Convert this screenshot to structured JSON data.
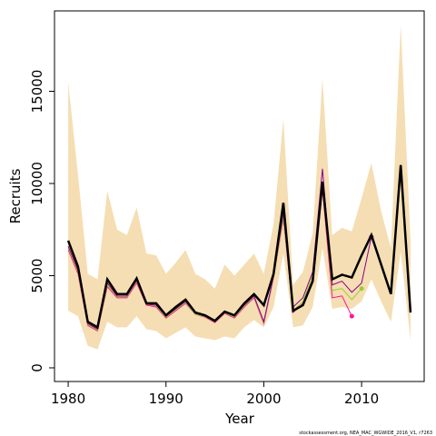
{
  "chart_data": {
    "type": "line",
    "xlabel": "Year",
    "ylabel": "Recruits",
    "note": "stockassessment.org, NEA_MAC_WGWIDE_2016_V1, r7263",
    "x": [
      1980,
      1981,
      1982,
      1983,
      1984,
      1985,
      1986,
      1987,
      1988,
      1989,
      1990,
      1991,
      1992,
      1993,
      1994,
      1995,
      1996,
      1997,
      1998,
      1999,
      2000,
      2001,
      2002,
      2003,
      2004,
      2005,
      2006,
      2007,
      2008,
      2009,
      2010,
      2011,
      2012,
      2013,
      2014,
      2015
    ],
    "band": {
      "color": "#f5deb3",
      "upper": [
        15500,
        10500,
        5100,
        4800,
        9600,
        7500,
        7200,
        8700,
        6200,
        6100,
        5100,
        5700,
        6400,
        5100,
        4800,
        4300,
        5600,
        5000,
        5600,
        6200,
        5100,
        7800,
        13500,
        4500,
        5200,
        7300,
        15700,
        7200,
        7600,
        7400,
        9200,
        11100,
        8500,
        6500,
        18600,
        7000
      ],
      "lower": [
        3100,
        2800,
        1200,
        1000,
        2500,
        2200,
        2200,
        2800,
        2100,
        2000,
        1600,
        1900,
        2200,
        1700,
        1600,
        1500,
        1700,
        1600,
        2200,
        2600,
        2200,
        3300,
        6200,
        2200,
        2300,
        3300,
        6500,
        3200,
        3300,
        3200,
        3600,
        4800,
        3600,
        2500,
        6300,
        1500
      ]
    },
    "series": [
      {
        "color": "#ff1493",
        "values": [
          6400,
          5100,
          2300,
          2000,
          4400,
          3800,
          3800,
          4600,
          3400,
          3300,
          2700,
          3100,
          3500,
          2900,
          2750,
          2450,
          2950,
          2700,
          3300,
          3800,
          2400,
          4900,
          8100,
          3000,
          3500,
          4800,
          9700,
          3800,
          3900,
          2800,
          null,
          null,
          null,
          null,
          null,
          null
        ]
      },
      {
        "color": "#9acd32",
        "values": [
          6500,
          5200,
          2350,
          2050,
          4500,
          3850,
          3850,
          4700,
          3450,
          3350,
          2750,
          3150,
          3550,
          2900,
          2780,
          2480,
          2980,
          2750,
          3350,
          3850,
          2450,
          4950,
          8200,
          3100,
          3600,
          5000,
          10000,
          4200,
          4300,
          3700,
          4300,
          null,
          null,
          null,
          null,
          null
        ]
      },
      {
        "color": "#8b008b",
        "values": [
          6600,
          5300,
          2400,
          2100,
          4600,
          3900,
          3900,
          4750,
          3450,
          3400,
          2800,
          3200,
          3600,
          2950,
          2800,
          2500,
          3000,
          2800,
          3400,
          3900,
          2500,
          5000,
          8400,
          3300,
          3800,
          5200,
          10800,
          4500,
          4700,
          4100,
          4600,
          7100,
          null,
          null,
          null,
          null
        ]
      },
      {
        "color": "#000000",
        "values": [
          6900,
          5500,
          2500,
          2200,
          4800,
          4000,
          4000,
          4850,
          3500,
          3500,
          2850,
          3300,
          3700,
          3000,
          2850,
          2550,
          3050,
          2850,
          3500,
          4000,
          3400,
          5100,
          8950,
          3100,
          3400,
          4700,
          10100,
          4800,
          5050,
          4900,
          6100,
          7200,
          5600,
          4000,
          11000,
          3000
        ]
      }
    ],
    "xlim": [
      1978.6,
      2016.4
    ],
    "ylim": [
      -740,
      19360
    ],
    "xticks": [
      1980,
      1990,
      2000,
      2010
    ],
    "yticks": [
      0,
      5000,
      10000,
      15000
    ]
  }
}
